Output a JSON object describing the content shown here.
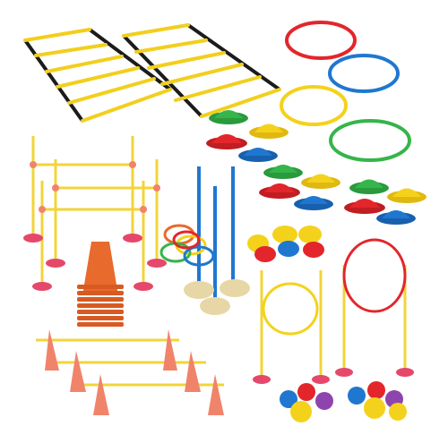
{
  "scene": {
    "kind": "product-photo",
    "background": "#ffffff",
    "colors": {
      "red": "#e3262b",
      "green": "#35b54a",
      "blue": "#1f77d0",
      "yellow": "#f4d21c",
      "orange": "#e86a2c",
      "cone": "#f0846a",
      "base": "#e8d7a6",
      "ladderRung": "#f2cf1c",
      "ladderStrap": "#1b1b1b",
      "pole": "#f2d43a"
    },
    "items": {
      "agility_ladders": 2,
      "hoops": 4,
      "dome_cones": 12,
      "hurdle_posts": 6,
      "hurdle_bars": 3,
      "slalom_poles": 3,
      "stack_cones": 8,
      "throw_rings": 5,
      "flat_markers": 6,
      "hoop_stands": 2,
      "balls": 9,
      "small_cones": 6
    }
  }
}
